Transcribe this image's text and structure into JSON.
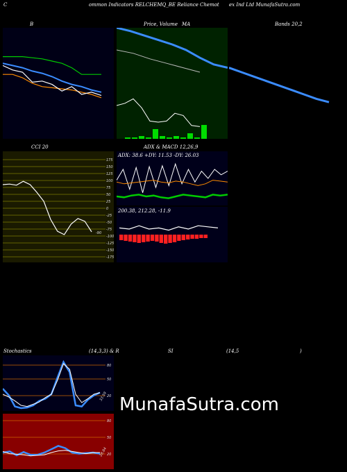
{
  "header": {
    "left": "C",
    "middle": "ommon  Indicators RELCHEMQ_BE Reliance  Chemot",
    "right": "ex Ind Ltd MunafaSutra.com"
  },
  "labels": {
    "bb": "B",
    "price": "Price,  Volume",
    "price_ma": "MA",
    "bands": "Bands 20,2",
    "cci": "CCI 20",
    "adx_title": "ADX  & MACD 12,26,9",
    "adx_values": "ADX: 38.6  +DY: 11.53 -DY: 26.03",
    "macd_values": "200.38,  212.28,  -11.9",
    "stoch": "Stochastics",
    "stoch_params": "(14,3,3) & R",
    "rsi": "SI",
    "rsi_params": "(14,5",
    "rsi_close": ")",
    "watermark": "MunafaSutra.com"
  },
  "colors": {
    "yellow_bg": "#0a1a0a",
    "green_panel": "#002200",
    "navy_panel": "#00001a",
    "red_panel": "#880000",
    "blue_line": "#3b8cff",
    "green_line": "#00cc00",
    "orange_line": "#ff8c00"
  },
  "chart_data": [
    {
      "type": "line",
      "panel": "bollinger",
      "series": [
        {
          "color": "#00cc00",
          "values": [
            74,
            74,
            74,
            73,
            72,
            70,
            68,
            64,
            58,
            58,
            58
          ]
        },
        {
          "color": "#3b8cff",
          "values": [
            68,
            66,
            64,
            61,
            59,
            56,
            52,
            49,
            47,
            44,
            42
          ]
        },
        {
          "color": "#ff8c00",
          "values": [
            58,
            58,
            55,
            50,
            47,
            46,
            45,
            44,
            42,
            40,
            37
          ]
        },
        {
          "color": "#ffffff",
          "values": [
            66,
            62,
            60,
            51,
            52,
            49,
            43,
            47,
            40,
            42,
            39
          ]
        }
      ]
    },
    {
      "type": "line",
      "panel": "price_volume",
      "series": [
        {
          "color": "#3b8cff",
          "values": [
            100,
            97,
            93,
            89,
            85,
            80,
            73,
            67,
            64
          ]
        },
        {
          "color": "#bbbbbb",
          "values": [
            80,
            77,
            72,
            68,
            64,
            60
          ]
        },
        {
          "color": "#ffffff",
          "values": [
            30,
            32,
            36,
            28,
            16,
            15,
            16,
            23,
            21,
            12,
            11
          ]
        }
      ],
      "volume": [
        1,
        1,
        2,
        1,
        7,
        2,
        1,
        2,
        1,
        4,
        1,
        10
      ]
    },
    {
      "type": "line",
      "panel": "bands_extension",
      "series": [
        {
          "color": "#3b8cff",
          "values": [
            64,
            60,
            56,
            52,
            48,
            44,
            40,
            36,
            33
          ]
        }
      ]
    },
    {
      "type": "line",
      "panel": "cci",
      "ticks": [
        "175",
        "150",
        "125",
        "100",
        "75",
        "50",
        "25",
        "0",
        "-25",
        "-50",
        "-75",
        "-100",
        "-125",
        "-150",
        "-175"
      ],
      "values": [
        80,
        82,
        78,
        92,
        80,
        52,
        20,
        -45,
        -88,
        -100,
        -62,
        -42,
        -52,
        -90
      ],
      "last_value": "-90"
    },
    {
      "type": "line",
      "panel": "adx",
      "series": [
        {
          "name": "ADX",
          "color": "#ffffff",
          "values": [
            28,
            40,
            18,
            42,
            14,
            43,
            20,
            44,
            22,
            46,
            24,
            40,
            26,
            38,
            30,
            40,
            34,
            38
          ]
        },
        {
          "name": "+DY",
          "color": "#00cc00",
          "values": [
            10,
            9,
            11,
            12,
            10,
            11,
            9,
            8,
            10,
            12,
            11,
            10,
            9,
            12,
            11,
            12
          ]
        },
        {
          "name": "-DY",
          "color": "#ff8c00",
          "values": [
            26,
            24,
            25,
            26,
            27,
            28,
            26,
            25,
            27,
            26,
            24,
            22,
            24,
            28,
            27,
            26
          ]
        }
      ]
    },
    {
      "type": "bar",
      "panel": "macd",
      "values": [
        8,
        9,
        10,
        11,
        12,
        11,
        10,
        9,
        10,
        12,
        13,
        12,
        11,
        9,
        8,
        7,
        6,
        6,
        5,
        5
      ]
    },
    {
      "type": "line",
      "panel": "stochastics",
      "ticks": [
        "80",
        "50",
        "20"
      ],
      "series": [
        {
          "color": "#3b8cff",
          "values": [
            40,
            28,
            8,
            5,
            6,
            10,
            18,
            22,
            30,
            60,
            88,
            70,
            10,
            8,
            20,
            28,
            33
          ]
        },
        {
          "color": "#ffffff",
          "values": [
            30,
            25,
            18,
            10,
            8,
            12,
            16,
            24,
            30,
            55,
            85,
            75,
            30,
            15,
            22,
            30,
            33
          ]
        }
      ],
      "last_value": "33.59"
    },
    {
      "type": "line",
      "panel": "rsi",
      "ticks": [
        "80",
        "50",
        "20"
      ],
      "series": [
        {
          "color": "#3b8cff",
          "values": [
            30,
            32,
            25,
            31,
            26,
            26,
            30,
            36,
            42,
            38,
            30,
            28,
            29,
            30,
            28
          ]
        },
        {
          "color": "#ffffff",
          "values": [
            32,
            28,
            27,
            26,
            24,
            25,
            26,
            30,
            33,
            34,
            32,
            30,
            28,
            30,
            30
          ]
        }
      ],
      "last_value": "28.84"
    }
  ]
}
